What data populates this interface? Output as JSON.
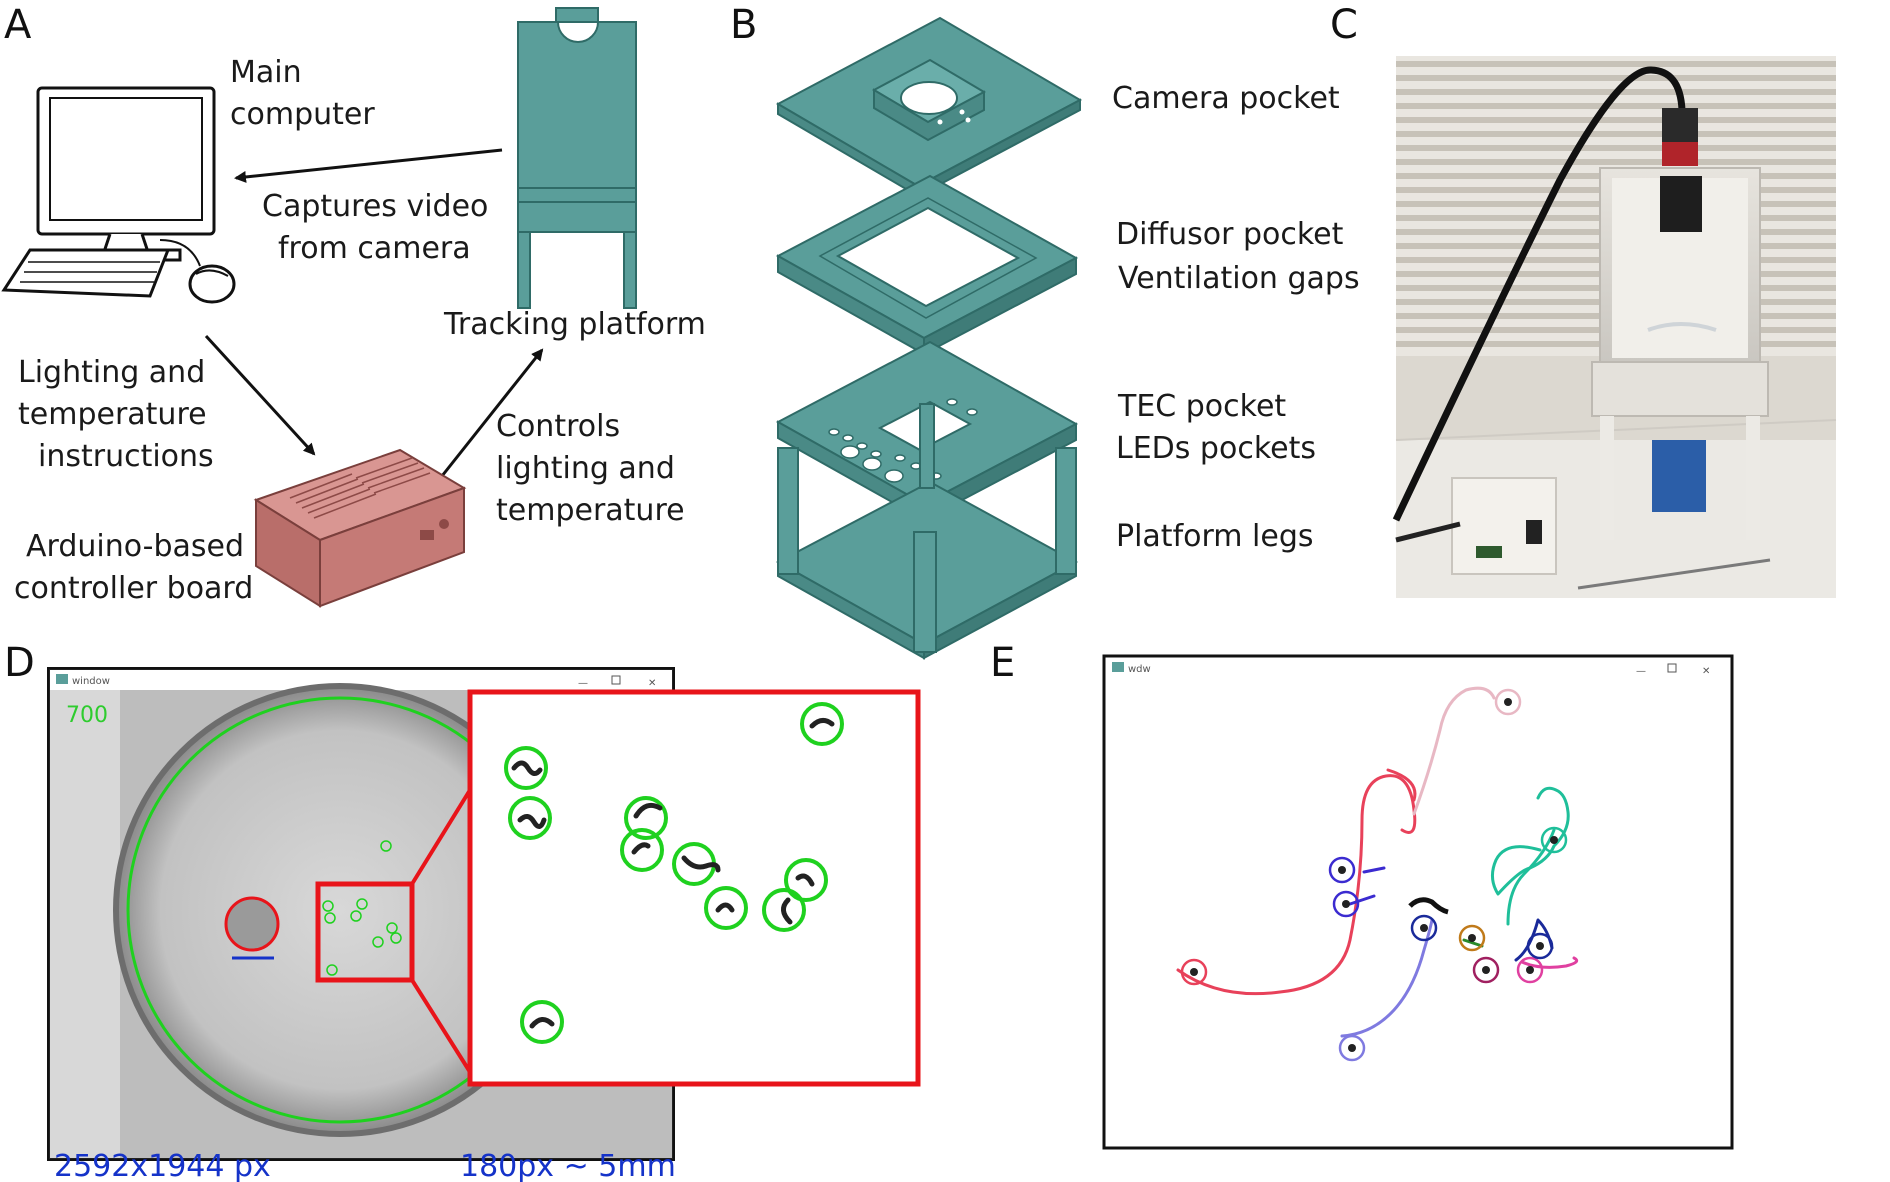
{
  "panels": {
    "a": "A",
    "b": "B",
    "c": "C",
    "d": "D",
    "e": "E"
  },
  "panel_a": {
    "main_computer": [
      "Main",
      "computer"
    ],
    "captures": [
      "Captures video",
      "from camera"
    ],
    "tracking_platform": "Tracking platform",
    "instructions": [
      "Lighting and",
      "temperature",
      "instructions"
    ],
    "controls": [
      "Controls",
      "lighting and",
      "temperature"
    ],
    "controller": [
      "Arduino-based",
      "controller board"
    ]
  },
  "panel_b": {
    "camera_pocket": "Camera pocket",
    "diffusor": [
      "Diffusor pocket",
      "Ventilation gaps"
    ],
    "tec": [
      "TEC pocket",
      "LEDs pockets"
    ],
    "legs": "Platform legs"
  },
  "panel_d": {
    "window_title": "window",
    "frame_number": "700",
    "resolution": "2592x1944 px",
    "scale": "180px ~ 5mm"
  },
  "panel_e": {
    "window_title": "wdw"
  },
  "colors": {
    "teal": "#5a9e9a",
    "teal_dark": "#2f6b67",
    "controller": "#c9807c",
    "track_green": "#1fd11f",
    "zoom_red": "#e8141a",
    "label_blue": "#1533c9"
  }
}
